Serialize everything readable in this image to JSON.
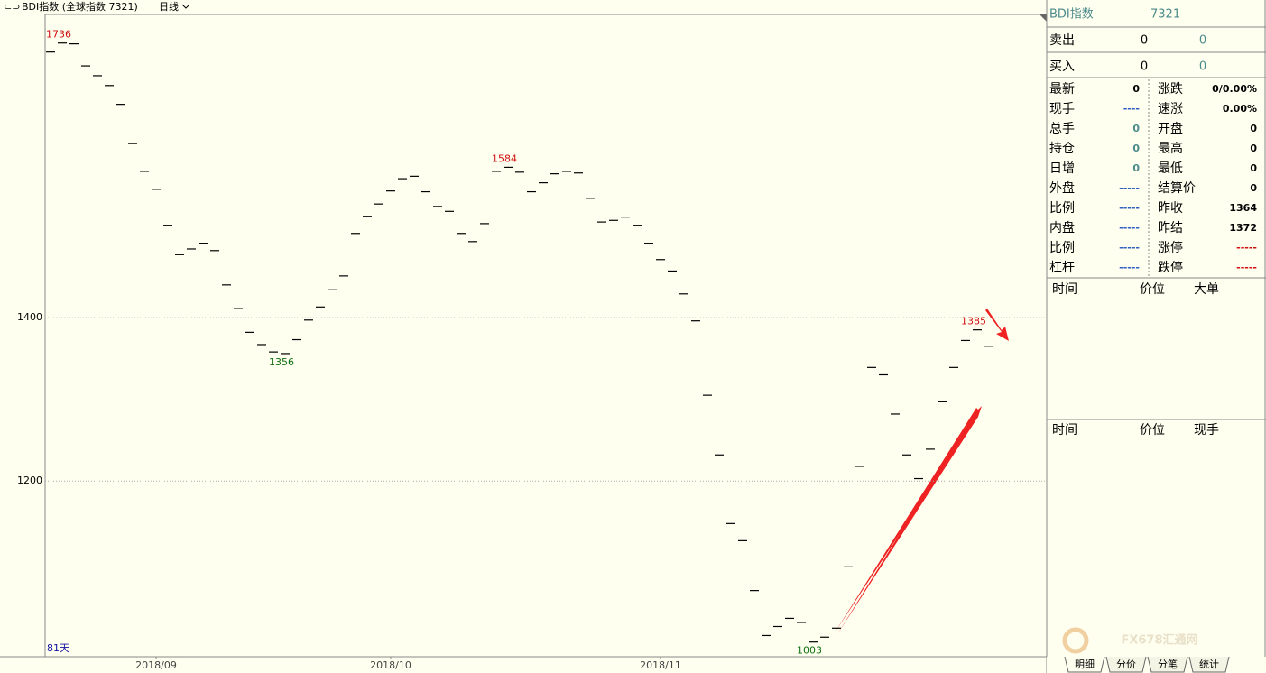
{
  "top_bar": {
    "title": "BDI指数 (全球指数 7321)",
    "period": "日线"
  },
  "chart_data": {
    "type": "dash",
    "color": "#000000",
    "values": [
      1725,
      1736,
      1735,
      1708,
      1696,
      1684,
      1661,
      1613,
      1579,
      1557,
      1513,
      1477,
      1484,
      1491,
      1482,
      1440,
      1411,
      1382,
      1367,
      1358,
      1356,
      1373,
      1397,
      1413,
      1434,
      1451,
      1503,
      1524,
      1539,
      1555,
      1570,
      1573,
      1554,
      1536,
      1530,
      1503,
      1493,
      1515,
      1579,
      1584,
      1578,
      1554,
      1565,
      1576,
      1579,
      1577,
      1546,
      1517,
      1519,
      1523,
      1513,
      1491,
      1471,
      1457,
      1429,
      1396,
      1305,
      1232,
      1148,
      1127,
      1066,
      1011,
      1022,
      1032,
      1027,
      1003,
      1009,
      1020,
      1095,
      1218,
      1339,
      1330,
      1282,
      1232,
      1203,
      1239,
      1297,
      1339,
      1372,
      1385,
      1365
    ],
    "ylim": [
      985,
      1771
    ],
    "yticks": [
      1200,
      1400
    ],
    "grid": true,
    "xticks": [
      {
        "value": 9,
        "label": "2018/09"
      },
      {
        "value": 29,
        "label": "2018/10"
      },
      {
        "value": 52,
        "label": "2018/11"
      }
    ],
    "annotations": [
      {
        "index": 1,
        "label": "1736",
        "position": "above",
        "color": "#d01010"
      },
      {
        "index": 20,
        "label": "1356",
        "position": "below",
        "color": "#107010"
      },
      {
        "index": 39,
        "label": "1584",
        "position": "above",
        "color": "#d01010"
      },
      {
        "index": 65,
        "label": "1003",
        "position": "below",
        "color": "#107010"
      },
      {
        "index": 79,
        "label": "1385",
        "position": "above",
        "color": "#d01010"
      }
    ],
    "days_label": "81天"
  },
  "side": {
    "title": "BDI指数",
    "code": "7321",
    "sell": {
      "label": "卖出",
      "price": "0",
      "volume": "0"
    },
    "buy": {
      "label": "买入",
      "price": "0",
      "volume": "0"
    },
    "quote_rows": [
      [
        "最新",
        "0",
        "涨跌",
        "0/0.00%"
      ],
      [
        "现手",
        "----",
        "速涨",
        "0.00%"
      ],
      [
        "总手",
        "0",
        "开盘",
        "0"
      ],
      [
        "持仓",
        "0",
        "最高",
        "0"
      ],
      [
        "日增",
        "0",
        "最低",
        "0"
      ],
      [
        "外盘",
        "-----",
        "结算价",
        "0"
      ],
      [
        "比例",
        "-----",
        "昨收",
        "1364"
      ],
      [
        "内盘",
        "-----",
        "昨结",
        "1372"
      ],
      [
        "比例",
        "-----",
        "涨停",
        "-----"
      ],
      [
        "杠杆",
        "-----",
        "跌停",
        "-----"
      ]
    ],
    "tables": [
      {
        "headers": [
          "时间",
          "价位",
          "大单"
        ]
      },
      {
        "headers": [
          "时间",
          "价位",
          "现手"
        ]
      }
    ],
    "tabs": [
      "明细",
      "分价",
      "分笔",
      "统计"
    ]
  },
  "watermark": "FX678汇通网"
}
